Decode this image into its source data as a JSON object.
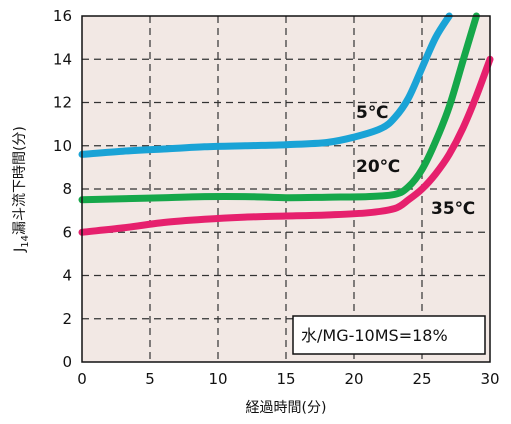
{
  "chart_data": {
    "type": "line",
    "xlabel": "経過時間(分)",
    "ylabel_prefix": "J",
    "ylabel_sub": "14",
    "ylabel_main": "漏斗流下時間(分)",
    "xlim": [
      0,
      30
    ],
    "ylim": [
      0,
      16
    ],
    "x_ticks": [
      0,
      5,
      10,
      15,
      20,
      25,
      30
    ],
    "y_ticks": [
      0,
      2,
      4,
      6,
      8,
      10,
      12,
      14,
      16
    ],
    "grid": true,
    "annotation": "水/MG-10MS=18%",
    "colors": {
      "background": "#f2e8e4",
      "grid": "#333333",
      "series_5": "#1aa3d6",
      "series_20": "#16a74a",
      "series_35": "#e6206d"
    },
    "series": [
      {
        "name": "5℃",
        "color_key": "series_5",
        "x": [
          0,
          3,
          6,
          9,
          12,
          15,
          18,
          20,
          22,
          23,
          24,
          25,
          26,
          27
        ],
        "y": [
          9.6,
          9.75,
          9.85,
          9.95,
          10.0,
          10.05,
          10.15,
          10.4,
          10.8,
          11.3,
          12.2,
          13.6,
          15.0,
          16.0
        ]
      },
      {
        "name": "20℃",
        "color_key": "series_20",
        "x": [
          0,
          3,
          6,
          9,
          12,
          15,
          18,
          21,
          23,
          24,
          25,
          26,
          27,
          28,
          29
        ],
        "y": [
          7.5,
          7.55,
          7.6,
          7.65,
          7.65,
          7.6,
          7.62,
          7.65,
          7.75,
          8.1,
          8.9,
          10.2,
          11.8,
          13.9,
          16.0
        ]
      },
      {
        "name": "35℃",
        "color_key": "series_35",
        "x": [
          0,
          3,
          6,
          9,
          12,
          15,
          18,
          21,
          23,
          24,
          25,
          26,
          27,
          28,
          29,
          30
        ],
        "y": [
          6.0,
          6.2,
          6.45,
          6.6,
          6.7,
          6.75,
          6.8,
          6.9,
          7.1,
          7.5,
          8.0,
          8.7,
          9.6,
          10.8,
          12.3,
          14.0
        ]
      }
    ]
  }
}
